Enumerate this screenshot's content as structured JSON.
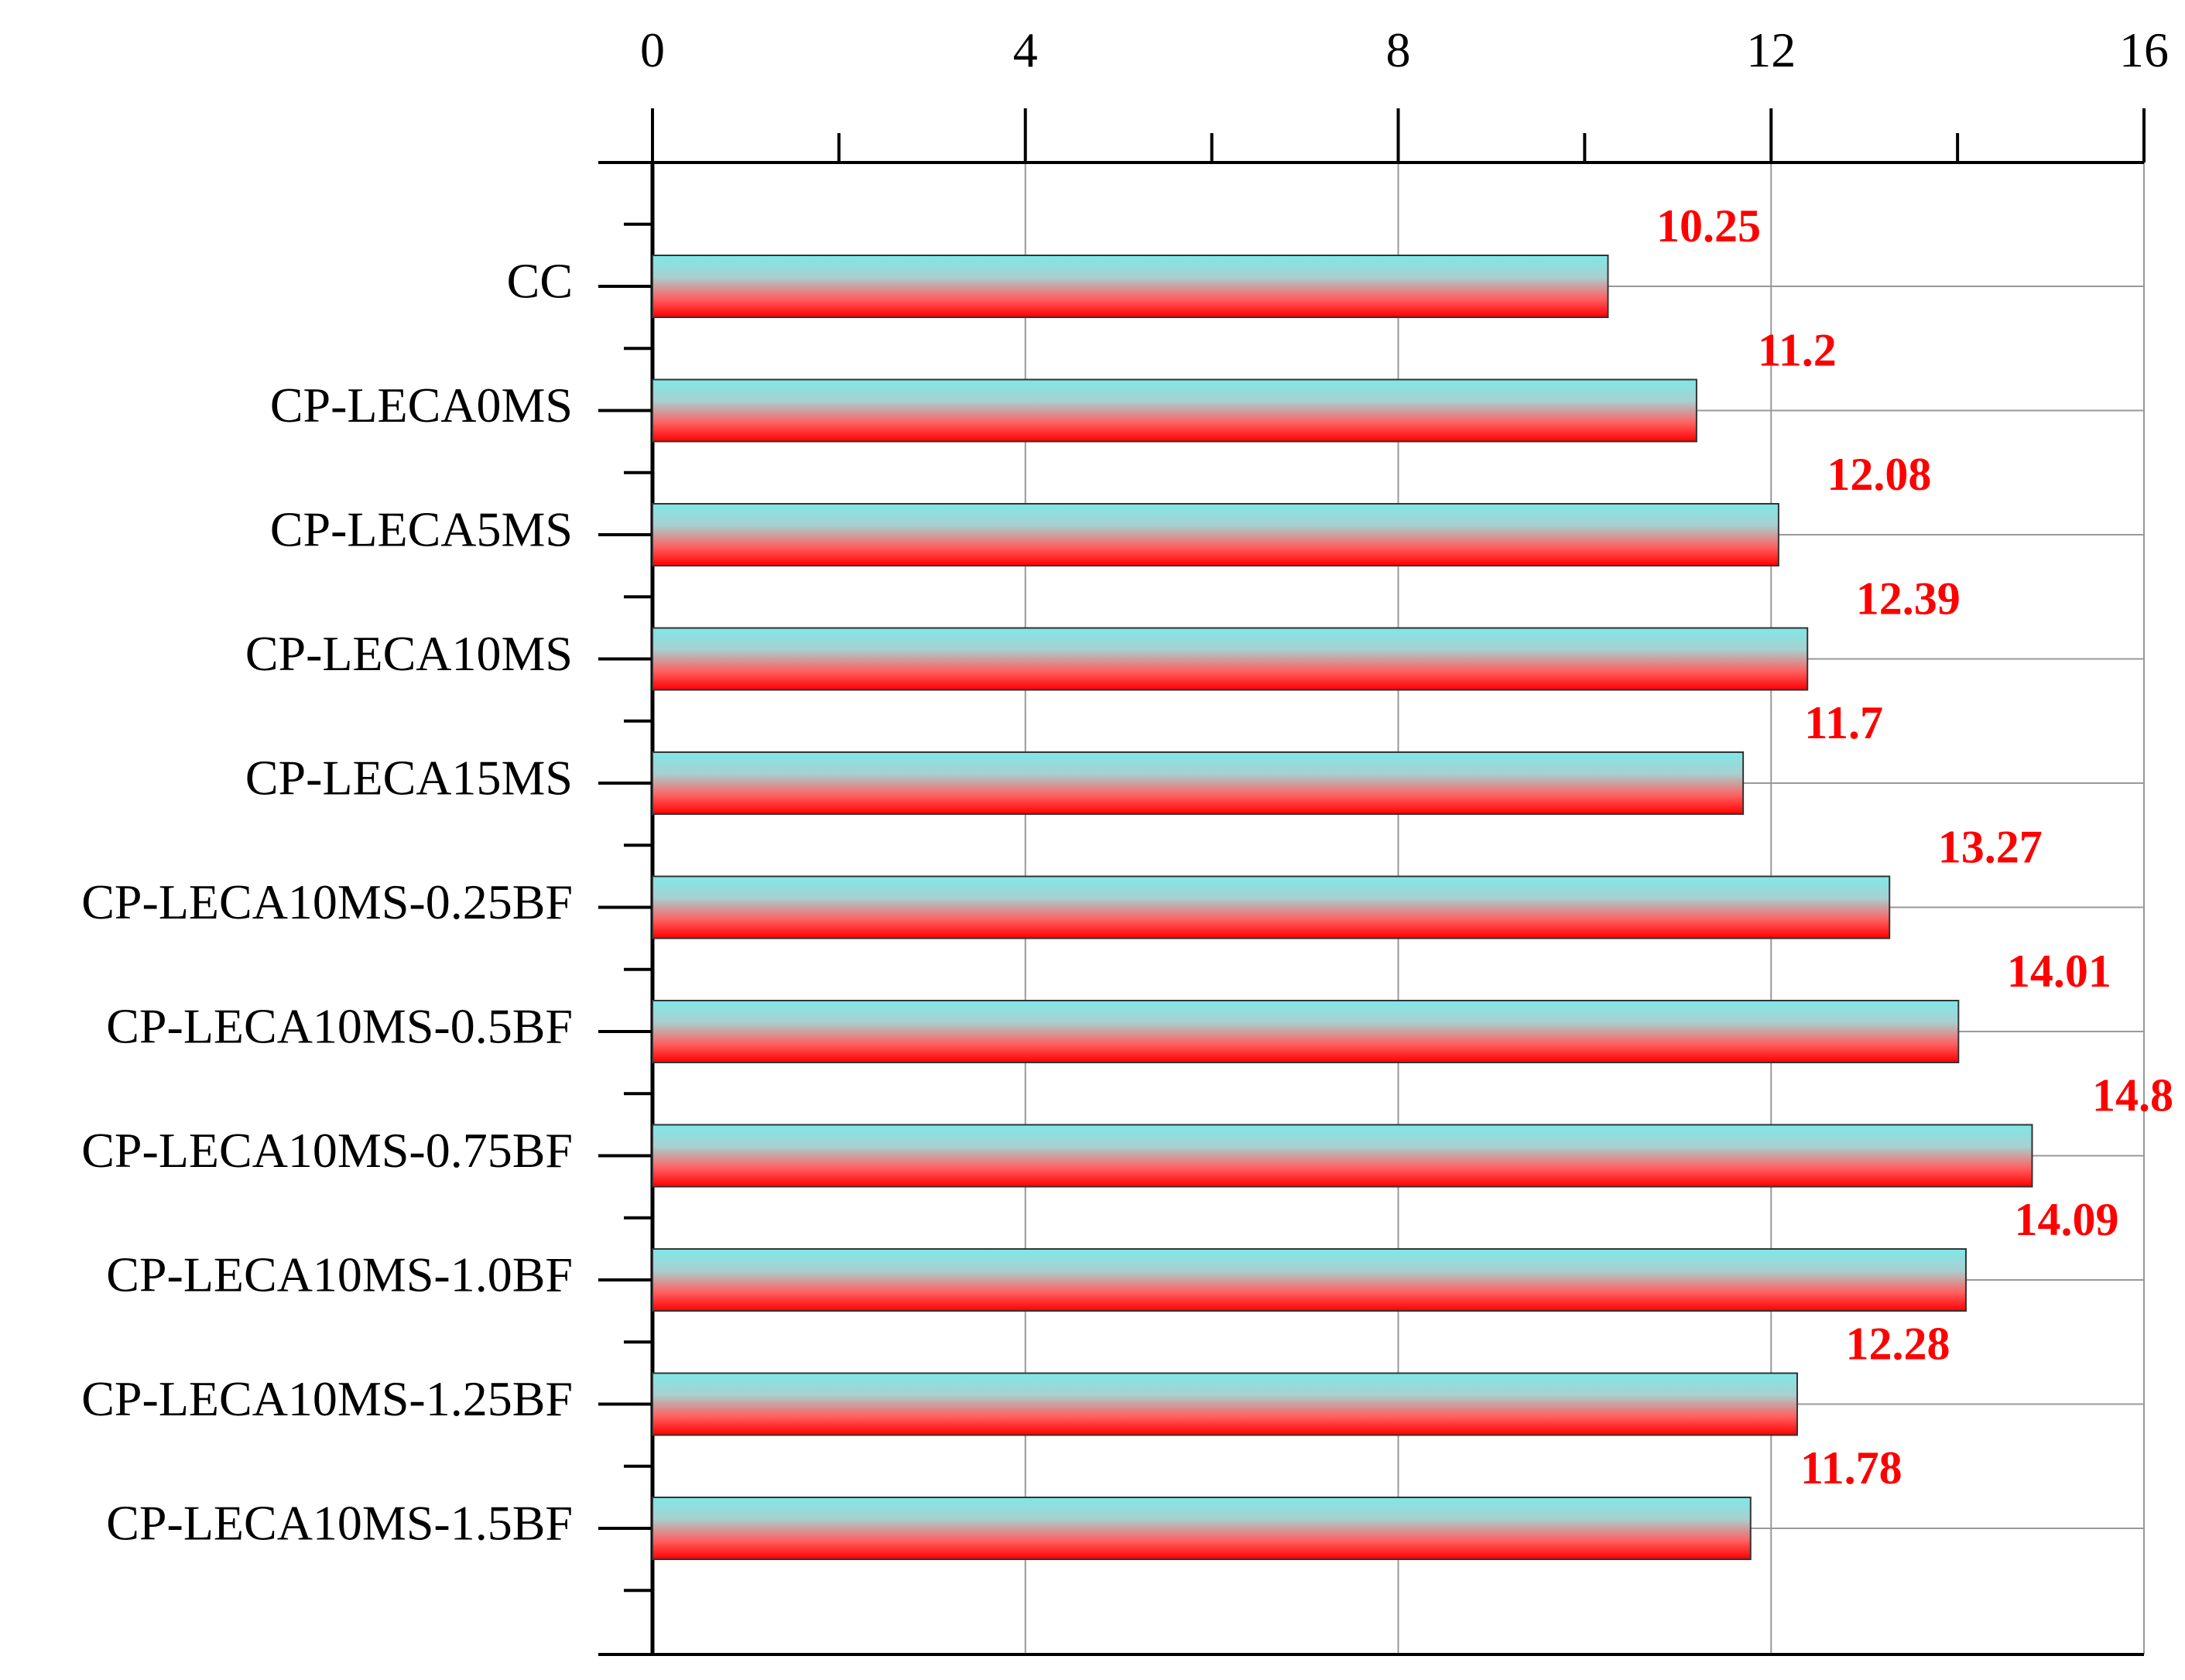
{
  "chart_data": {
    "type": "bar",
    "orientation": "horizontal",
    "title": "",
    "xlabel": "",
    "ylabel": "",
    "categories": [
      "CC",
      "CP-LECA0MS",
      "CP-LECA5MS",
      "CP-LECA10MS",
      "CP-LECA15MS",
      "CP-LECA10MS-0.25BF",
      "CP-LECA10MS-0.5BF",
      "CP-LECA10MS-0.75BF",
      "CP-LECA10MS-1.0BF",
      "CP-LECA10MS-1.25BF",
      "CP-LECA10MS-1.5BF"
    ],
    "values": [
      10.25,
      11.2,
      12.08,
      12.39,
      11.7,
      13.27,
      14.01,
      14.8,
      14.09,
      12.28,
      11.78
    ],
    "value_labels": [
      "10.25",
      "11.2",
      "12.08",
      "12.39",
      "11.7",
      "13.27",
      "14.01",
      "14.8",
      "14.09",
      "12.28",
      "11.78"
    ],
    "xlim": [
      0,
      16
    ],
    "x_ticks": [
      "0",
      "4",
      "8",
      "12",
      "16"
    ],
    "x_tick_values": [
      0,
      4,
      8,
      12,
      16
    ],
    "x_axis_position": "top",
    "grid": true,
    "legend": "none",
    "colors": {
      "bar_top": "#7fe8e8",
      "bar_bottom": "#ff0000",
      "data_label": "#ff0000",
      "grid": "#999999",
      "axis": "#000000"
    }
  }
}
